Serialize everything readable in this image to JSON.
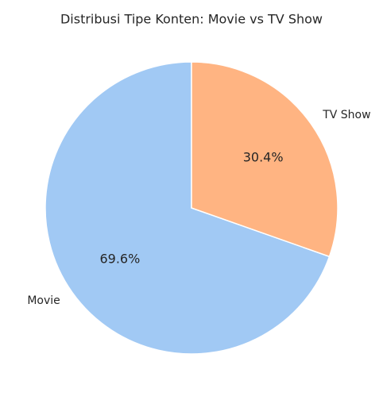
{
  "chart_data": {
    "type": "pie",
    "title": "Distribusi Tipe Konten: Movie vs TV Show",
    "categories": [
      "Movie",
      "TV Show"
    ],
    "values": [
      69.6,
      30.4
    ],
    "pct_labels": [
      "69.6%",
      "30.4%"
    ],
    "colors": [
      "#a1c9f4",
      "#ffb482"
    ],
    "start_angle_deg": 90,
    "direction": "counterclockwise",
    "legend": "none"
  }
}
